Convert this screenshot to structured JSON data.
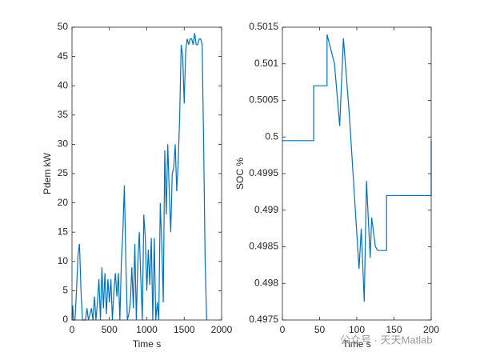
{
  "chart_data": [
    {
      "type": "line",
      "xlabel": "Time s",
      "ylabel": "Pdem kW",
      "xlim": [
        0,
        2000
      ],
      "xticks": [
        0,
        500,
        1000,
        1500,
        2000
      ],
      "ylim": [
        0,
        50
      ],
      "yticks": [
        0,
        5,
        10,
        15,
        20,
        25,
        30,
        35,
        40,
        45,
        50
      ],
      "series": [
        {
          "color": "#0072bd",
          "x": [
            0,
            10,
            20,
            40,
            60,
            80,
            100,
            120,
            140,
            180,
            200,
            220,
            260,
            280,
            300,
            320,
            340,
            360,
            380,
            400,
            420,
            440,
            460,
            480,
            500,
            520,
            540,
            560,
            580,
            600,
            620,
            640,
            660,
            680,
            700,
            720,
            740,
            760,
            780,
            800,
            820,
            840,
            860,
            880,
            900,
            920,
            940,
            960,
            980,
            1000,
            1020,
            1040,
            1060,
            1080,
            1100,
            1120,
            1140,
            1160,
            1180,
            1200,
            1220,
            1240,
            1260,
            1280,
            1300,
            1320,
            1340,
            1360,
            1380,
            1400,
            1420,
            1440,
            1460,
            1480,
            1500,
            1520,
            1540,
            1560,
            1580,
            1600,
            1620,
            1640,
            1660,
            1680,
            1700,
            1720,
            1740,
            1760,
            1780,
            1800
          ],
          "values": [
            0,
            2.5,
            0,
            0,
            5,
            11,
            13,
            5,
            0,
            0,
            2,
            0,
            2,
            0,
            4,
            0,
            3,
            7,
            0,
            9,
            2,
            8,
            1,
            7,
            3,
            7,
            0,
            5,
            8,
            4,
            8,
            0,
            10,
            15,
            23,
            10,
            0,
            1,
            3,
            9,
            2,
            13,
            0,
            10,
            15,
            7,
            0,
            18,
            14,
            5,
            12,
            6,
            14,
            0,
            14,
            0,
            3,
            0,
            20,
            13,
            3,
            29,
            18,
            30,
            22,
            15,
            25,
            26,
            30,
            22,
            27,
            35,
            47,
            45,
            37,
            46,
            48,
            47,
            48,
            48,
            47,
            49,
            47,
            47,
            48,
            48,
            47,
            30,
            10,
            0
          ]
        }
      ]
    },
    {
      "type": "line",
      "xlabel": "Time s",
      "ylabel": "SOC %",
      "xlim": [
        0,
        200
      ],
      "xticks": [
        0,
        50,
        100,
        150,
        200
      ],
      "ylim": [
        0.4975,
        0.5015
      ],
      "yticks": [
        0.4975,
        0.498,
        0.4985,
        0.499,
        0.4995,
        0.5,
        0.5005,
        0.501,
        0.5015
      ],
      "series": [
        {
          "color": "#0072bd",
          "x": [
            0,
            42,
            42,
            60,
            60,
            70,
            77,
            82,
            90,
            103,
            106,
            110,
            113,
            118,
            120,
            125,
            128,
            140,
            140,
            200,
            200
          ],
          "values": [
            0.49995,
            0.49995,
            0.5007,
            0.5007,
            0.5014,
            0.501,
            0.50015,
            0.50135,
            0.5003,
            0.4982,
            0.49875,
            0.49775,
            0.4994,
            0.49835,
            0.4989,
            0.4985,
            0.49845,
            0.49845,
            0.4992,
            0.4992,
            0.49995
          ]
        }
      ]
    }
  ],
  "watermark": "公众号 · 天天Matlab"
}
